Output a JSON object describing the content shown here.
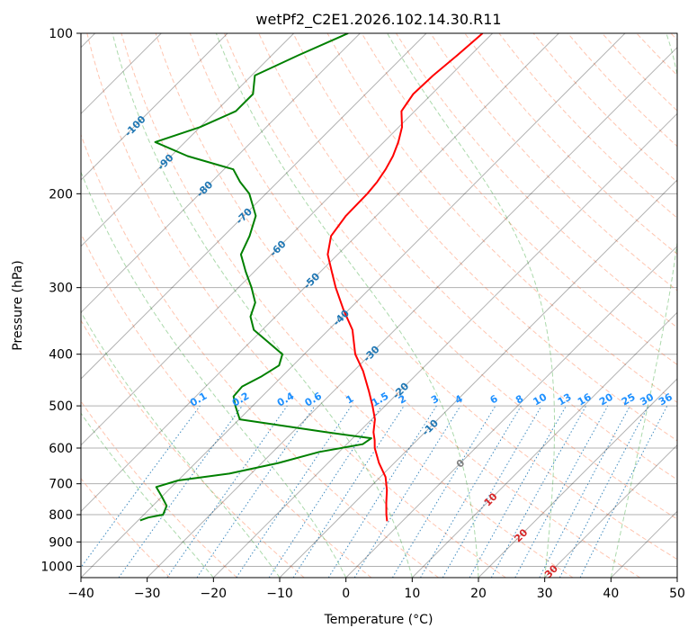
{
  "chart_data": {
    "type": "line",
    "title": "wetPf2_C2E1.2026.102.14.30.R11",
    "xlabel": "Temperature (°C)",
    "ylabel": "Pressure (hPa)",
    "xlim": [
      -40,
      50
    ],
    "ylim": [
      1050,
      100
    ],
    "y_scale": "log",
    "grid": true,
    "x_ticks": [
      -40,
      -30,
      -20,
      -10,
      0,
      10,
      20,
      30,
      40,
      50
    ],
    "y_ticks": [
      100,
      200,
      300,
      400,
      500,
      600,
      700,
      800,
      900,
      1000
    ],
    "colors": {
      "temperature": "#ff0000",
      "dewpoint": "#008000",
      "isotherm": "#000000",
      "dry_adiabat": "#ff7f50",
      "moist_adiabat": "#2ca02c",
      "mixing_ratio": "#1f77b4",
      "label_blue": "#1f77b4",
      "label_red": "#d62728",
      "label_bright_blue": "#1e90ff",
      "label_grey": "#808080",
      "ccl_curve": "#d2b48c"
    },
    "series": [
      {
        "key": "temperature",
        "points": [
          [
            -61.5,
            100
          ],
          [
            -62.0,
            110
          ],
          [
            -62.6,
            120
          ],
          [
            -62.8,
            130
          ],
          [
            -62.0,
            140
          ],
          [
            -59.5,
            150
          ],
          [
            -57.8,
            160
          ],
          [
            -56.5,
            170
          ],
          [
            -55.6,
            180
          ],
          [
            -55.0,
            190
          ],
          [
            -54.7,
            200
          ],
          [
            -54.6,
            220
          ],
          [
            -53.8,
            240
          ],
          [
            -51.5,
            260
          ],
          [
            -48.3,
            280
          ],
          [
            -45.3,
            300
          ],
          [
            -40.8,
            330
          ],
          [
            -36.4,
            360
          ],
          [
            -32.3,
            400
          ],
          [
            -28.6,
            430
          ],
          [
            -24.6,
            470
          ],
          [
            -21.9,
            500
          ],
          [
            -19.5,
            530
          ],
          [
            -17.8,
            560
          ],
          [
            -16.4,
            580
          ],
          [
            -15.2,
            600
          ],
          [
            -12.3,
            640
          ],
          [
            -9.2,
            680
          ],
          [
            -7.0,
            720
          ],
          [
            -5.2,
            760
          ],
          [
            -3.4,
            800
          ],
          [
            -2.3,
            823
          ]
        ]
      },
      {
        "key": "dewpoint",
        "points": [
          [
            -81.8,
            100
          ],
          [
            -86.0,
            110
          ],
          [
            -89.5,
            120
          ],
          [
            -87.0,
            130
          ],
          [
            -87.0,
            140
          ],
          [
            -90.0,
            150
          ],
          [
            -94.5,
            160
          ],
          [
            -87.5,
            170
          ],
          [
            -78.6,
            180
          ],
          [
            -75.7,
            190
          ],
          [
            -72.5,
            200
          ],
          [
            -68.2,
            220
          ],
          [
            -66.1,
            240
          ],
          [
            -64.6,
            260
          ],
          [
            -61.3,
            280
          ],
          [
            -58.0,
            300
          ],
          [
            -55.2,
            320
          ],
          [
            -53.8,
            340
          ],
          [
            -51.3,
            360
          ],
          [
            -47.2,
            380
          ],
          [
            -43.3,
            400
          ],
          [
            -42.1,
            420
          ],
          [
            -43.1,
            440
          ],
          [
            -44.5,
            460
          ],
          [
            -44.3,
            480
          ],
          [
            -42.6,
            500
          ],
          [
            -39.9,
            530
          ],
          [
            -25.0,
            560
          ],
          [
            -17.2,
            575
          ],
          [
            -17.6,
            590
          ],
          [
            -23.0,
            610
          ],
          [
            -27.5,
            640
          ],
          [
            -33.3,
            670
          ],
          [
            -40.0,
            690
          ],
          [
            -42.3,
            710
          ],
          [
            -40.0,
            740
          ],
          [
            -37.9,
            770
          ],
          [
            -37.1,
            800
          ],
          [
            -38.9,
            810
          ],
          [
            -39.7,
            820
          ]
        ]
      }
    ],
    "isotherm_labels": {
      "positions": [
        [
          "-100",
          140
        ],
        [
          "-90",
          180
        ],
        [
          "-80",
          210
        ],
        [
          "-70",
          240
        ],
        [
          "-60",
          276
        ],
        [
          "-50",
          312
        ],
        [
          "-40",
          353
        ],
        [
          "-30",
          393
        ],
        [
          "-20",
          434
        ],
        [
          "-10",
          475
        ],
        [
          "0",
          515
        ],
        [
          "10",
          555
        ],
        [
          "20",
          595
        ],
        [
          "30",
          635
        ],
        [
          "40",
          675
        ]
      ]
    },
    "mixing_ratio_labels": [
      "0.1",
      "0.2",
      "0.4",
      "0.6",
      "1",
      "1.5",
      "2",
      "3",
      "4",
      "6",
      "8",
      "10",
      "13",
      "16",
      "20",
      "25",
      "30",
      "36"
    ],
    "mixing_ratio_values": [
      0.1,
      0.2,
      0.4,
      0.6,
      1,
      1.5,
      2,
      3,
      4,
      6,
      8,
      10,
      13,
      16,
      20,
      25,
      30,
      36
    ],
    "mixing_ratio_label_pressure": 500
  }
}
